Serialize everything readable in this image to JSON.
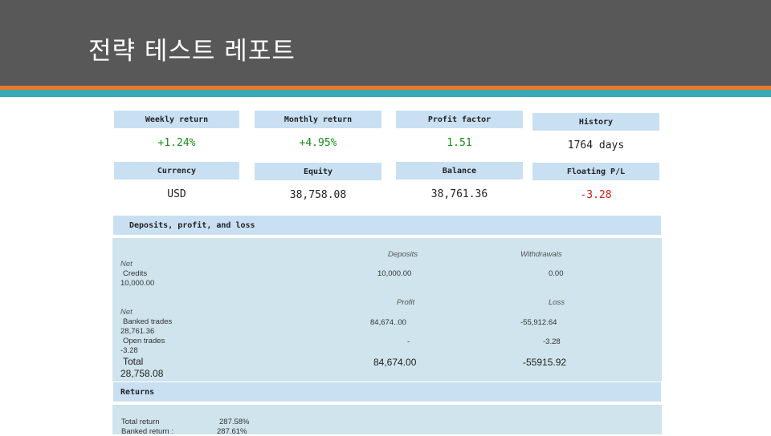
{
  "title": "전략 테스트 레포트",
  "stats_row1": {
    "weekly_return_label": "Weekly return",
    "weekly_return_value": "+1.24%",
    "monthly_return_label": "Monthly return",
    "monthly_return_value": "+4.95%",
    "profit_factor_label": "Profit factor",
    "profit_factor_value": "1.51",
    "history_label": "History",
    "history_value": "1764 days"
  },
  "stats_row2": {
    "currency_label": "Currency",
    "currency_value": "USD",
    "equity_label": "Equity",
    "equity_value": "38,758.08",
    "balance_label": "Balance",
    "balance_value": "38,761.36",
    "floating_label": "Floating P/L",
    "floating_value": "-3.28"
  },
  "deposits_section": {
    "heading": "Deposits, profit, and loss",
    "col_deposits": "Deposits",
    "col_withdrawals": "Withdrawals",
    "net_label": "Net",
    "credits_label": "Credits",
    "credits_amount": "10,000.00",
    "deposits_value": "10,000.00",
    "withdrawals_value": "0.00",
    "col_profit": "Profit",
    "col_loss": "Loss",
    "net2_label": "Net",
    "banked_label": "Banked trades",
    "banked_amount": "28,761.36",
    "open_label": "Open trades",
    "open_amount": "-3.28",
    "total_label": "Total",
    "total_amount": "28,758.08",
    "banked_profit": "84,674..00",
    "banked_loss": "-55,912.64",
    "open_profit": "-",
    "open_loss": "-3.28",
    "total_profit": "84,674.00",
    "total_loss": "-55915.92"
  },
  "returns_section": {
    "heading": "Returns",
    "total_return_label": "Total return",
    "total_return_value": "287.58%",
    "banked_return_label": "Banked return :",
    "banked_return_value": "287.61%"
  },
  "colors": {
    "header_bg": "#585858",
    "accent_orange": "#e87b28",
    "accent_teal": "#3ba8b5",
    "label_bg": "#c9e0f3",
    "panel_bg": "#cfe4ec",
    "positive": "#1a8c1a",
    "negative": "#d71a1a"
  }
}
